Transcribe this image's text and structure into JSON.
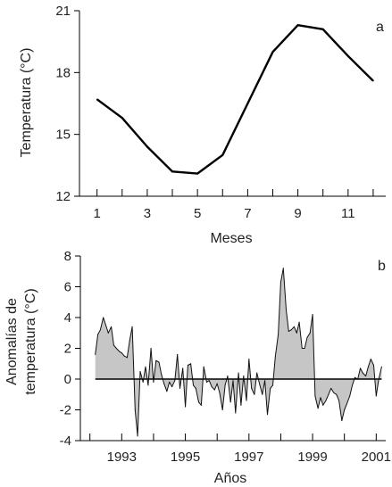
{
  "chart_data": [
    {
      "type": "line",
      "panel_label": "a",
      "xlabel": "Meses",
      "ylabel": "Temperatura (°C)",
      "xlim": [
        0.3,
        12.5
      ],
      "ylim": [
        12,
        21
      ],
      "x_ticks": [
        1,
        3,
        5,
        7,
        9,
        11
      ],
      "x_minor_ticks": [
        2,
        4,
        6,
        8,
        10,
        12
      ],
      "y_ticks": [
        12,
        15,
        18,
        21
      ],
      "grid": false,
      "x": [
        1,
        2,
        3,
        4,
        5,
        6,
        7,
        8,
        9,
        10,
        11,
        12
      ],
      "y": [
        16.7,
        15.8,
        14.4,
        13.2,
        13.1,
        14.0,
        16.5,
        19.0,
        20.3,
        20.1,
        18.8,
        17.6
      ]
    },
    {
      "type": "area",
      "panel_label": "b",
      "xlabel": "Años",
      "ylabel_lines": [
        "Anomalías de",
        "temperatura (°C)"
      ],
      "xlim": [
        1991.7,
        2001.3
      ],
      "ylim": [
        -4,
        8
      ],
      "x_ticks": [
        1993,
        1995,
        1997,
        1999,
        2001
      ],
      "x_minor_ticks": [
        1992,
        1994,
        1996,
        1998,
        2000
      ],
      "y_ticks": [
        -4,
        -2,
        0,
        2,
        4,
        6,
        8
      ],
      "grid": false,
      "baseline": 0,
      "x": [
        1992.17,
        1992.25,
        1992.33,
        1992.42,
        1992.5,
        1992.58,
        1992.67,
        1992.75,
        1992.83,
        1992.92,
        1993.0,
        1993.08,
        1993.17,
        1993.25,
        1993.33,
        1993.42,
        1993.5,
        1993.58,
        1993.67,
        1993.75,
        1993.83,
        1993.92,
        1994.0,
        1994.08,
        1994.17,
        1994.25,
        1994.33,
        1994.42,
        1994.5,
        1994.58,
        1994.67,
        1994.75,
        1994.83,
        1994.92,
        1995.0,
        1995.08,
        1995.17,
        1995.25,
        1995.33,
        1995.42,
        1995.5,
        1995.58,
        1995.67,
        1995.75,
        1995.83,
        1995.92,
        1996.0,
        1996.08,
        1996.17,
        1996.25,
        1996.33,
        1996.42,
        1996.5,
        1996.58,
        1996.67,
        1996.75,
        1996.83,
        1996.92,
        1997.0,
        1997.08,
        1997.17,
        1997.25,
        1997.33,
        1997.42,
        1997.5,
        1997.58,
        1997.67,
        1997.75,
        1997.83,
        1997.92,
        1998.0,
        1998.08,
        1998.17,
        1998.25,
        1998.33,
        1998.42,
        1998.5,
        1998.58,
        1998.67,
        1998.75,
        1998.83,
        1998.92,
        1999.0,
        1999.08,
        1999.17,
        1999.25,
        1999.33,
        1999.42,
        1999.5,
        1999.58,
        1999.67,
        1999.75,
        1999.83,
        1999.92,
        2000.0,
        2000.08,
        2000.17,
        2000.25,
        2000.33,
        2000.42,
        2000.5,
        2000.58,
        2000.67,
        2000.75,
        2000.83,
        2000.92,
        2001.0,
        2001.08,
        2001.17
      ],
      "y": [
        1.6,
        2.9,
        3.2,
        4.0,
        3.5,
        3.0,
        3.4,
        2.2,
        2.0,
        1.8,
        1.7,
        1.5,
        1.4,
        2.5,
        3.4,
        -2.0,
        -3.7,
        0.5,
        -0.2,
        0.8,
        -0.4,
        2.0,
        -0.2,
        1.2,
        1.1,
        0.3,
        -0.3,
        -0.8,
        -0.2,
        -0.5,
        -0.1,
        1.6,
        -0.6,
        0.7,
        -1.8,
        0.9,
        1.0,
        -0.4,
        -0.6,
        -1.5,
        -1.7,
        0.8,
        -0.2,
        -0.1,
        -0.5,
        -0.7,
        -0.3,
        -0.9,
        -2.0,
        -0.4,
        0.2,
        -1.5,
        -0.1,
        -2.2,
        0.4,
        -1.7,
        0.2,
        -1.4,
        1.3,
        -0.6,
        -1.0,
        0.4,
        -0.3,
        -1.0,
        -0.1,
        -2.3,
        -0.6,
        -0.4,
        1.5,
        2.9,
        6.3,
        7.2,
        4.5,
        3.1,
        3.2,
        3.4,
        3.0,
        3.7,
        2.0,
        2.0,
        2.7,
        3.0,
        4.2,
        -1.1,
        -1.9,
        -1.2,
        -1.7,
        -1.4,
        -1.0,
        -0.6,
        -0.9,
        -1.0,
        -1.4,
        -2.7,
        -2.0,
        -1.6,
        -1.1,
        -0.4,
        0.1,
        0.0,
        0.7,
        0.4,
        0.2,
        0.8,
        1.3,
        0.9,
        -1.1,
        0.0,
        0.8
      ]
    }
  ],
  "colors": {
    "line": "#000000",
    "area_fill": "#c6c6c6"
  }
}
